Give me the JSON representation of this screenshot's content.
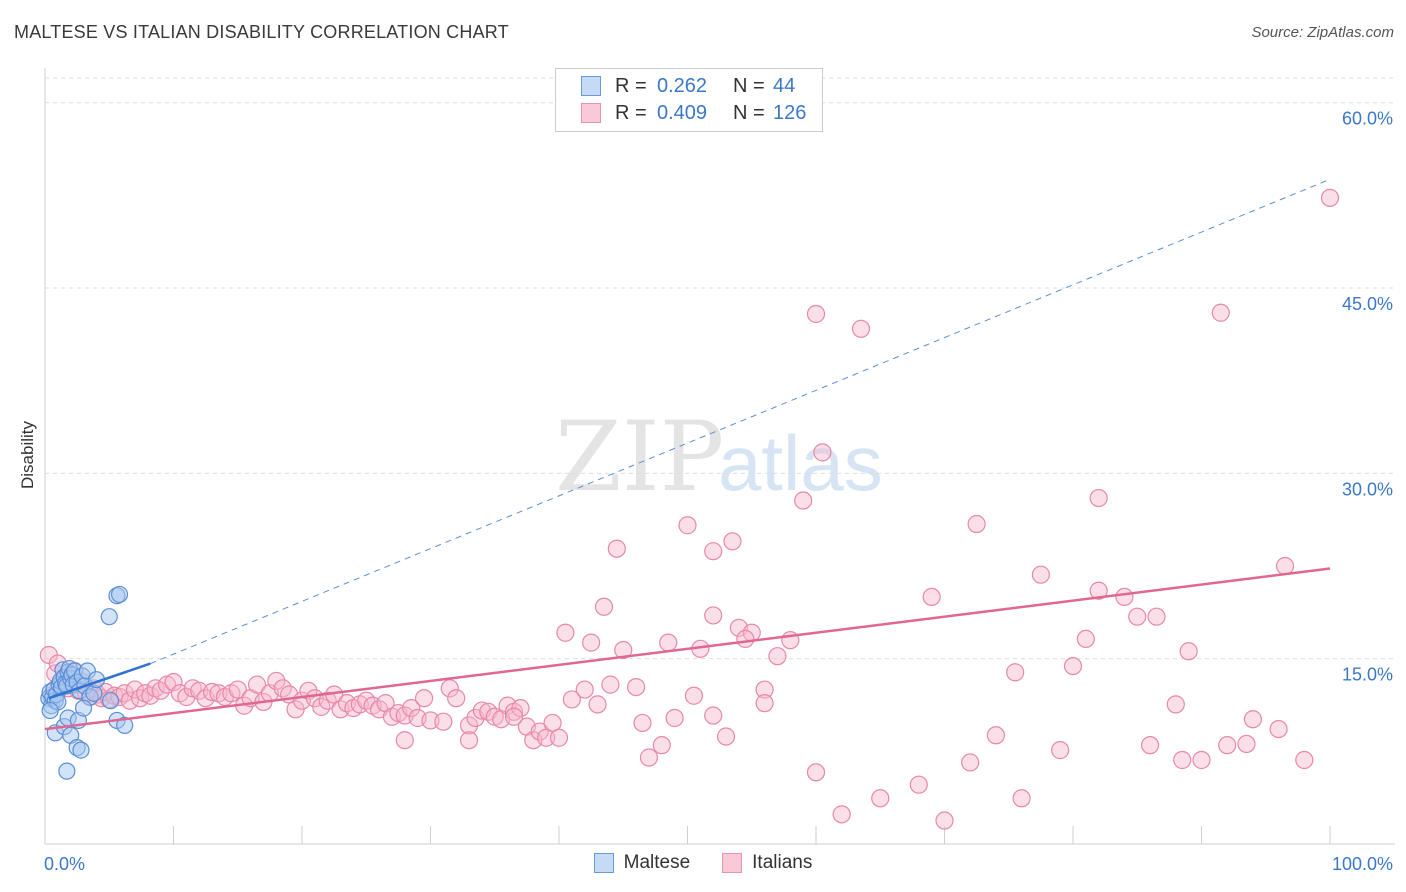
{
  "title": "MALTESE VS ITALIAN DISABILITY CORRELATION CHART",
  "source": "Source: ZipAtlas.com",
  "watermark": {
    "zip": "ZIP",
    "atlas": "atlas"
  },
  "colors": {
    "maltese_fill": "#a8c8f0",
    "maltese_stroke": "#5b8fd6",
    "maltese_line": "#2f74d0",
    "italians_fill": "#f7b8cb",
    "italians_stroke": "#e888a8",
    "italians_line": "#e0678f",
    "tick_label": "#3b78c9",
    "grid": "#dddddd"
  },
  "legend_top": [
    {
      "series": "Maltese",
      "r_label": "R =",
      "r_value": "0.262",
      "n_label": "N =",
      "n_value": "44"
    },
    {
      "series": "Italians",
      "r_label": "R =",
      "r_value": "0.409",
      "n_label": "N =",
      "n_value": "126"
    }
  ],
  "chart_data": {
    "type": "scatter",
    "title": "MALTESE VS ITALIAN DISABILITY CORRELATION CHART",
    "xlabel": "",
    "ylabel": "Disability",
    "xlim": [
      0,
      100
    ],
    "ylim": [
      0,
      62
    ],
    "x_tick_labels": [
      "0.0%",
      "100.0%"
    ],
    "y_ticks": [
      15,
      30,
      45,
      60
    ],
    "y_tick_labels": [
      "15.0%",
      "30.0%",
      "45.0%",
      "60.0%"
    ],
    "grid": true,
    "legend": "bottom",
    "series": [
      {
        "name": "Maltese",
        "points": [
          [
            0.3,
            11.8
          ],
          [
            0.4,
            12.3
          ],
          [
            0.5,
            11.2
          ],
          [
            0.6,
            11.9
          ],
          [
            0.7,
            12.5
          ],
          [
            0.8,
            11.6
          ],
          [
            0.9,
            12.1
          ],
          [
            1.0,
            11.5
          ],
          [
            1.1,
            12.9
          ],
          [
            1.2,
            13.2
          ],
          [
            1.3,
            12.7
          ],
          [
            1.4,
            14.1
          ],
          [
            1.5,
            13.5
          ],
          [
            1.6,
            13.0
          ],
          [
            1.7,
            12.8
          ],
          [
            1.8,
            13.9
          ],
          [
            1.9,
            14.2
          ],
          [
            2.0,
            13.4
          ],
          [
            2.1,
            13.7
          ],
          [
            2.2,
            12.9
          ],
          [
            2.3,
            14.0
          ],
          [
            2.5,
            13.1
          ],
          [
            2.7,
            12.4
          ],
          [
            2.9,
            13.6
          ],
          [
            3.1,
            12.8
          ],
          [
            3.3,
            14.0
          ],
          [
            3.5,
            11.9
          ],
          [
            3.8,
            12.2
          ],
          [
            4.0,
            13.3
          ],
          [
            0.4,
            10.8
          ],
          [
            0.8,
            9.0
          ],
          [
            1.5,
            9.5
          ],
          [
            1.8,
            10.2
          ],
          [
            2.0,
            8.8
          ],
          [
            2.6,
            10.0
          ],
          [
            3.0,
            11.0
          ],
          [
            2.5,
            7.8
          ],
          [
            2.8,
            7.6
          ],
          [
            1.7,
            5.9
          ],
          [
            5.1,
            11.6
          ],
          [
            5.6,
            10.0
          ],
          [
            6.2,
            9.6
          ],
          [
            5.0,
            18.4
          ],
          [
            5.6,
            20.1
          ],
          [
            5.8,
            20.2
          ]
        ],
        "trend": {
          "x0": 0.3,
          "y0": 11.8,
          "x1": 8.2,
          "y1": 14.6,
          "extended_x1": 100,
          "extended_y1": 53.8
        }
      },
      {
        "name": "Italians",
        "points": [
          [
            0.3,
            15.3
          ],
          [
            0.5,
            12.0
          ],
          [
            0.8,
            13.8
          ],
          [
            1.0,
            14.6
          ],
          [
            1.2,
            12.8
          ],
          [
            1.5,
            13.5
          ],
          [
            1.8,
            12.6
          ],
          [
            2.0,
            13.2
          ],
          [
            2.3,
            14.0
          ],
          [
            2.6,
            12.4
          ],
          [
            2.9,
            13.1
          ],
          [
            3.2,
            12.2
          ],
          [
            3.5,
            11.9
          ],
          [
            3.8,
            12.6
          ],
          [
            4.1,
            12.1
          ],
          [
            4.4,
            11.8
          ],
          [
            4.7,
            12.3
          ],
          [
            5.0,
            11.7
          ],
          [
            5.4,
            12.0
          ],
          [
            5.8,
            11.9
          ],
          [
            6.2,
            12.2
          ],
          [
            6.6,
            11.6
          ],
          [
            7.0,
            12.5
          ],
          [
            7.4,
            11.8
          ],
          [
            7.8,
            12.2
          ],
          [
            8.2,
            12.0
          ],
          [
            8.6,
            12.6
          ],
          [
            9.0,
            12.4
          ],
          [
            9.5,
            12.9
          ],
          [
            10.0,
            13.1
          ],
          [
            10.5,
            12.2
          ],
          [
            11.0,
            11.9
          ],
          [
            11.5,
            12.6
          ],
          [
            12.0,
            12.4
          ],
          [
            12.5,
            11.8
          ],
          [
            13.0,
            12.3
          ],
          [
            13.5,
            12.2
          ],
          [
            14.0,
            11.9
          ],
          [
            14.5,
            12.2
          ],
          [
            15.0,
            12.5
          ],
          [
            15.5,
            11.2
          ],
          [
            16.0,
            11.8
          ],
          [
            16.5,
            12.9
          ],
          [
            17.0,
            11.5
          ],
          [
            17.5,
            12.2
          ],
          [
            18.0,
            13.2
          ],
          [
            18.5,
            12.6
          ],
          [
            19.0,
            12.1
          ],
          [
            19.5,
            10.9
          ],
          [
            20.0,
            11.6
          ],
          [
            20.5,
            12.4
          ],
          [
            21.0,
            11.8
          ],
          [
            21.5,
            11.1
          ],
          [
            22.0,
            11.6
          ],
          [
            22.5,
            12.1
          ],
          [
            23.0,
            10.9
          ],
          [
            23.5,
            11.4
          ],
          [
            24.0,
            11.0
          ],
          [
            24.5,
            11.3
          ],
          [
            25.0,
            11.6
          ],
          [
            25.5,
            11.2
          ],
          [
            26.0,
            10.9
          ],
          [
            26.5,
            11.4
          ],
          [
            27.0,
            10.3
          ],
          [
            27.5,
            10.6
          ],
          [
            28.0,
            10.4
          ],
          [
            28.5,
            11.0
          ],
          [
            29.0,
            10.2
          ],
          [
            29.5,
            11.8
          ],
          [
            30.0,
            10.0
          ],
          [
            31.0,
            9.9
          ],
          [
            31.5,
            12.6
          ],
          [
            32.0,
            11.8
          ],
          [
            33.0,
            9.6
          ],
          [
            33.5,
            10.2
          ],
          [
            34.0,
            10.8
          ],
          [
            34.5,
            10.7
          ],
          [
            35.0,
            10.3
          ],
          [
            35.5,
            10.1
          ],
          [
            36.0,
            11.2
          ],
          [
            36.5,
            10.7
          ],
          [
            37.0,
            11.0
          ],
          [
            37.5,
            9.5
          ],
          [
            38.0,
            8.4
          ],
          [
            38.5,
            9.1
          ],
          [
            39.0,
            8.6
          ],
          [
            39.5,
            9.8
          ],
          [
            40.0,
            8.6
          ],
          [
            41.0,
            11.7
          ],
          [
            42.0,
            12.5
          ],
          [
            43.0,
            11.3
          ],
          [
            44.0,
            12.9
          ],
          [
            45.0,
            15.7
          ],
          [
            46.0,
            12.7
          ],
          [
            47.0,
            7.0
          ],
          [
            48.0,
            8.0
          ],
          [
            49.0,
            10.2
          ],
          [
            33.0,
            8.4
          ],
          [
            28.0,
            8.4
          ],
          [
            46.5,
            9.8
          ],
          [
            51.0,
            15.8
          ],
          [
            52.0,
            10.4
          ],
          [
            53.0,
            8.7
          ],
          [
            54.0,
            17.5
          ],
          [
            55.0,
            17.1
          ],
          [
            56.0,
            12.5
          ],
          [
            57.0,
            15.2
          ],
          [
            50.5,
            12.0
          ],
          [
            52.0,
            18.5
          ],
          [
            54.5,
            16.6
          ],
          [
            36.5,
            10.3
          ],
          [
            40.5,
            17.1
          ],
          [
            42.5,
            16.3
          ],
          [
            43.5,
            19.2
          ],
          [
            44.5,
            23.9
          ],
          [
            48.5,
            16.3
          ],
          [
            50.0,
            25.8
          ],
          [
            52.0,
            23.7
          ],
          [
            53.5,
            24.5
          ],
          [
            56.0,
            11.4
          ],
          [
            58.0,
            16.5
          ],
          [
            60.0,
            5.8
          ],
          [
            62.0,
            2.4
          ],
          [
            65.0,
            3.7
          ],
          [
            68.0,
            4.8
          ],
          [
            70.0,
            1.9
          ],
          [
            72.0,
            6.6
          ],
          [
            74.0,
            8.8
          ],
          [
            76.0,
            3.7
          ],
          [
            79.0,
            7.6
          ],
          [
            80.0,
            14.4
          ],
          [
            81.0,
            16.6
          ],
          [
            82.0,
            20.5
          ],
          [
            84.0,
            20.0
          ],
          [
            85.0,
            18.4
          ],
          [
            86.0,
            8.0
          ],
          [
            88.0,
            11.3
          ],
          [
            90.0,
            6.8
          ],
          [
            92.0,
            8.0
          ],
          [
            94.0,
            10.1
          ],
          [
            96.0,
            9.3
          ],
          [
            60.0,
            42.9
          ],
          [
            60.5,
            31.7
          ],
          [
            59.0,
            27.8
          ],
          [
            63.5,
            41.7
          ],
          [
            69.0,
            20.0
          ],
          [
            72.5,
            25.9
          ],
          [
            75.5,
            13.9
          ],
          [
            77.5,
            21.8
          ],
          [
            82.0,
            28.0
          ],
          [
            86.5,
            18.4
          ],
          [
            91.5,
            43.0
          ],
          [
            96.5,
            22.5
          ],
          [
            100.0,
            52.3
          ],
          [
            89.0,
            15.6
          ],
          [
            93.5,
            8.1
          ],
          [
            88.5,
            6.8
          ],
          [
            98.0,
            6.8
          ]
        ],
        "trend": {
          "x0": 0,
          "y0": 9.3,
          "x1": 100,
          "y1": 22.3
        }
      }
    ]
  }
}
